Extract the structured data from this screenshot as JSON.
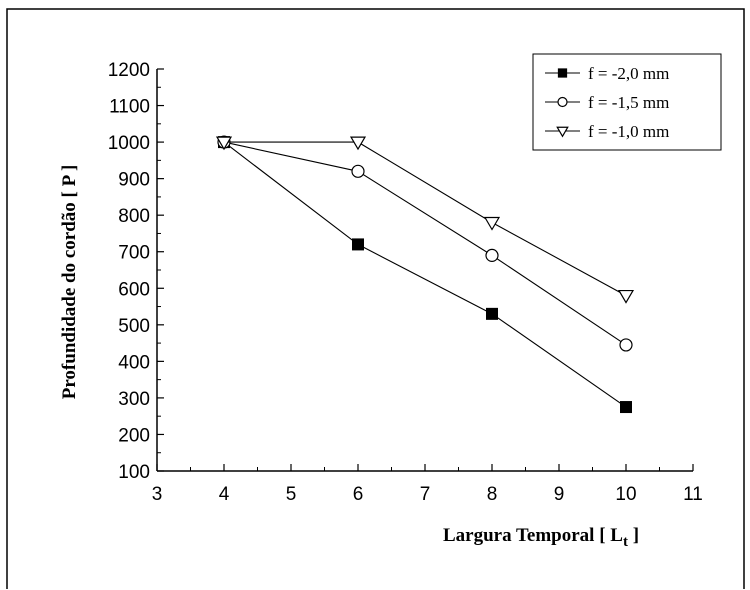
{
  "chart_data": {
    "type": "line",
    "title": "",
    "xlabel": "Largura Temporal [ L",
    "xlabel_subscript": "t",
    "xlabel_suffix": " ]",
    "ylabel": "Profundidade do cordão [ P ]",
    "xlim": [
      3,
      11
    ],
    "ylim": [
      100,
      1200
    ],
    "xticks": [
      3,
      4,
      5,
      6,
      7,
      8,
      9,
      10,
      11
    ],
    "yticks": [
      100,
      200,
      300,
      400,
      500,
      600,
      700,
      800,
      900,
      1000,
      1100,
      1200
    ],
    "grid": false,
    "legend_position": "top-right",
    "series": [
      {
        "name": "f = -2,0 mm",
        "marker": "filled-square",
        "color": "#000000",
        "x": [
          4,
          6,
          8,
          10
        ],
        "y": [
          1000,
          720,
          530,
          275
        ]
      },
      {
        "name": "f = -1,5 mm",
        "marker": "open-circle",
        "color": "#000000",
        "x": [
          4,
          6,
          8,
          10
        ],
        "y": [
          1000,
          920,
          690,
          445
        ]
      },
      {
        "name": "f = -1,0 mm",
        "marker": "open-triangle-down",
        "color": "#000000",
        "x": [
          4,
          6,
          8,
          10
        ],
        "y": [
          1000,
          1000,
          780,
          580
        ]
      }
    ]
  }
}
